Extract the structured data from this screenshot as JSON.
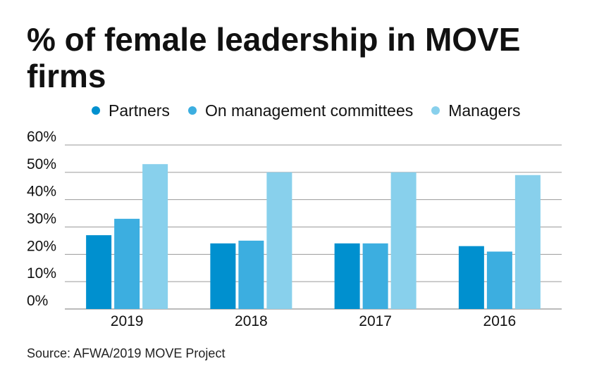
{
  "chart_data": {
    "type": "bar",
    "title": "% of female leadership in MOVE firms",
    "categories": [
      "2019",
      "2018",
      "2017",
      "2016"
    ],
    "series": [
      {
        "name": "Partners",
        "color": "#0090cf",
        "values": [
          27,
          24,
          24,
          23
        ]
      },
      {
        "name": "On management committees",
        "color": "#3caee0",
        "values": [
          33,
          25,
          24,
          21
        ]
      },
      {
        "name": "Managers",
        "color": "#88d0ec",
        "values": [
          53,
          50,
          50,
          49
        ]
      }
    ],
    "ylim": [
      0,
      60
    ],
    "yticks": [
      "0%",
      "10%",
      "20%",
      "30%",
      "40%",
      "50%",
      "60%"
    ],
    "grid": true,
    "legend_position": "top"
  },
  "source": "Source: AFWA/2019 MOVE Project"
}
